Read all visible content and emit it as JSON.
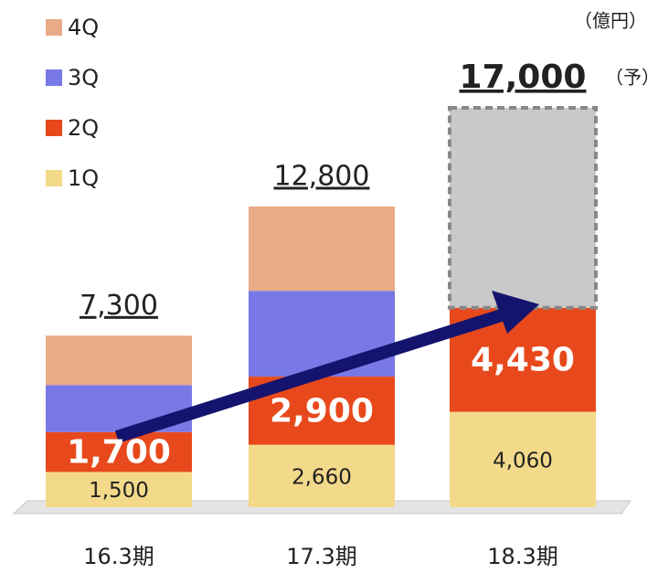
{
  "chart_data": {
    "type": "stacked-bar",
    "unit_label": "（億円）",
    "categories": [
      "16.3期",
      "17.3期",
      "18.3期"
    ],
    "series": [
      {
        "name": "1Q",
        "color": "#f3d98a",
        "values": [
          1500,
          2660,
          4060
        ],
        "value_labels": [
          "1,500",
          "2,660",
          "4,060"
        ]
      },
      {
        "name": "2Q",
        "color": "#e8491c",
        "values": [
          1700,
          2900,
          4430
        ],
        "value_labels": [
          "1,700",
          "2,900",
          "4,430"
        ]
      },
      {
        "name": "3Q",
        "color": "#7878e6",
        "values": [
          2000,
          3650,
          null
        ]
      },
      {
        "name": "4Q",
        "color": "#e9aa86",
        "values": [
          2100,
          3590,
          null
        ]
      },
      {
        "color": "#c9c9c9",
        "values": [
          null,
          null,
          8510
        ]
      }
    ],
    "totals": [
      7300,
      12800,
      17000
    ],
    "total_labels": [
      "7,300",
      "12,800",
      "17,000"
    ],
    "forecast_note": "（予）"
  }
}
